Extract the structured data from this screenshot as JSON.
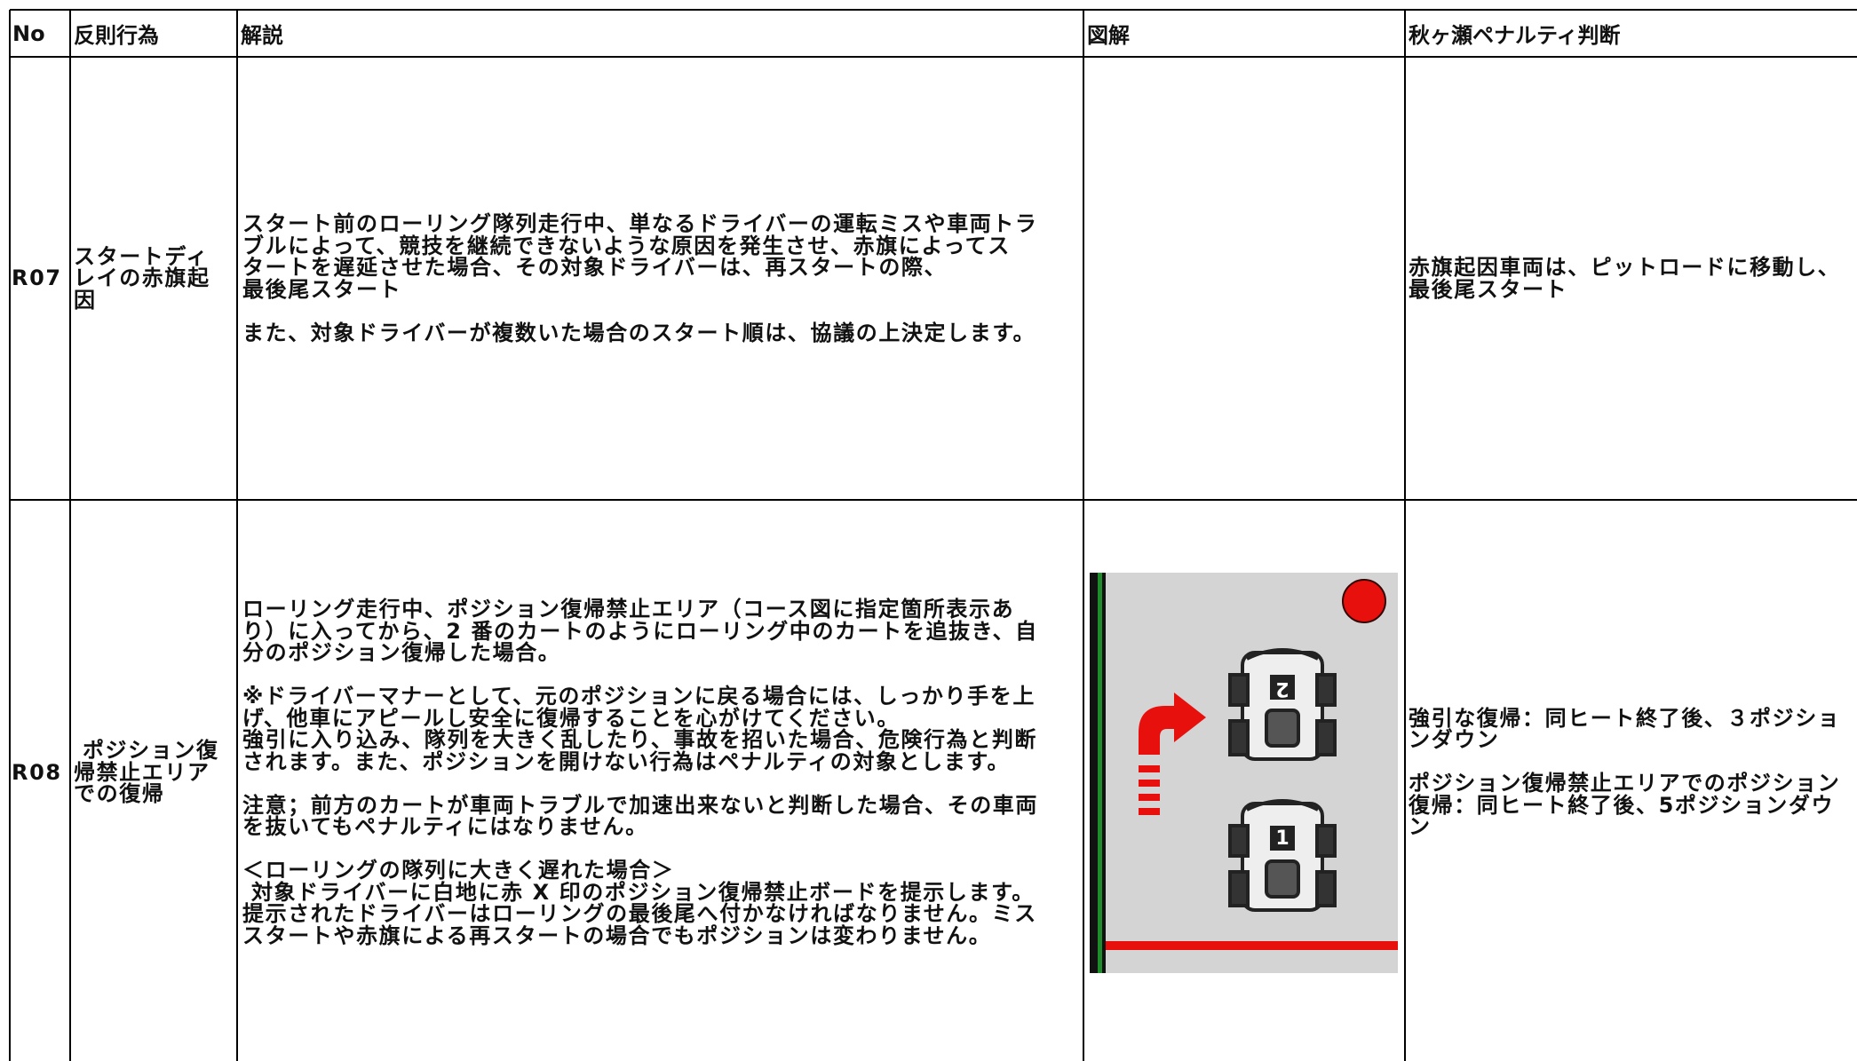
{
  "header": [
    "No",
    "反則行為",
    "解説",
    "図解",
    "秋ヶ瀬ペナルティ判断"
  ],
  "rows": [
    {
      "no": "R07",
      "violation": [
        "スタートディ",
        "レイの赤旗起",
        "因"
      ],
      "description": [
        [
          "スタート前のローリング隊列走行中、単なるドライバーの運転ミスや車両トラ",
          "ブルによって、競技を継続できないような原因を発生させ、赤旗によってス",
          "タートを遅延させた場合、その対象ドライバーは、再スタートの際、",
          "最後尾スタート"
        ],
        [
          "また、対象ドライバーが複数いた場合のスタート順は、協議の上決定します。"
        ]
      ],
      "penalty": [
        [
          "赤旗起因車両は、ピットロードに移動し、",
          "最後尾スタート"
        ]
      ]
    },
    {
      "no": "R08",
      "violation": [
        " ポジション復",
        "帰禁止エリア",
        "での復帰"
      ],
      "description": [
        [
          "ローリング走行中、ポジション復帰禁止エリア（コース図に指定箇所表示あ",
          "り）に入ってから、2 番のカートのようにローリング中のカートを追抜き、自",
          "分のポジション復帰した場合。"
        ],
        [
          "※ドライバーマナーとして、元のポジションに戻る場合には、しっかり手を上",
          "げ、他車にアピールし安全に復帰することを心がけてください。",
          "強引に入り込み、隊列を大きく乱したり、事故を招いた場合、危険行為と判断",
          "されます。また、ポジションを開けない行為はペナルティの対象とします。"
        ],
        [
          "注意；前方のカートが車両トラブルで加速出来ないと判断した場合、その車両",
          "を抜いてもペナルティにはなりません。"
        ],
        [
          "＜ローリングの隊列に大きく遅れた場合＞",
          " 対象ドライバーに白地に赤 X 印のポジション復帰禁止ボードを提示します。",
          "提示されたドライバーはローリングの最後尾へ付かなければなりません。ミス",
          "スタートや赤旗による再スタートの場合でもポジションは変わりません。"
        ]
      ],
      "diagram": {
        "kart_numbers": [
          "2",
          "1"
        ]
      },
      "penalty": [
        [
          "強引な復帰：同ヒート終了後、３ポジショ",
          "ンダウン"
        ],
        [
          "ポジション復帰禁止エリアでのポジション",
          "復帰：同ヒート終了後、5ポジションダウ",
          "ン"
        ]
      ]
    }
  ]
}
